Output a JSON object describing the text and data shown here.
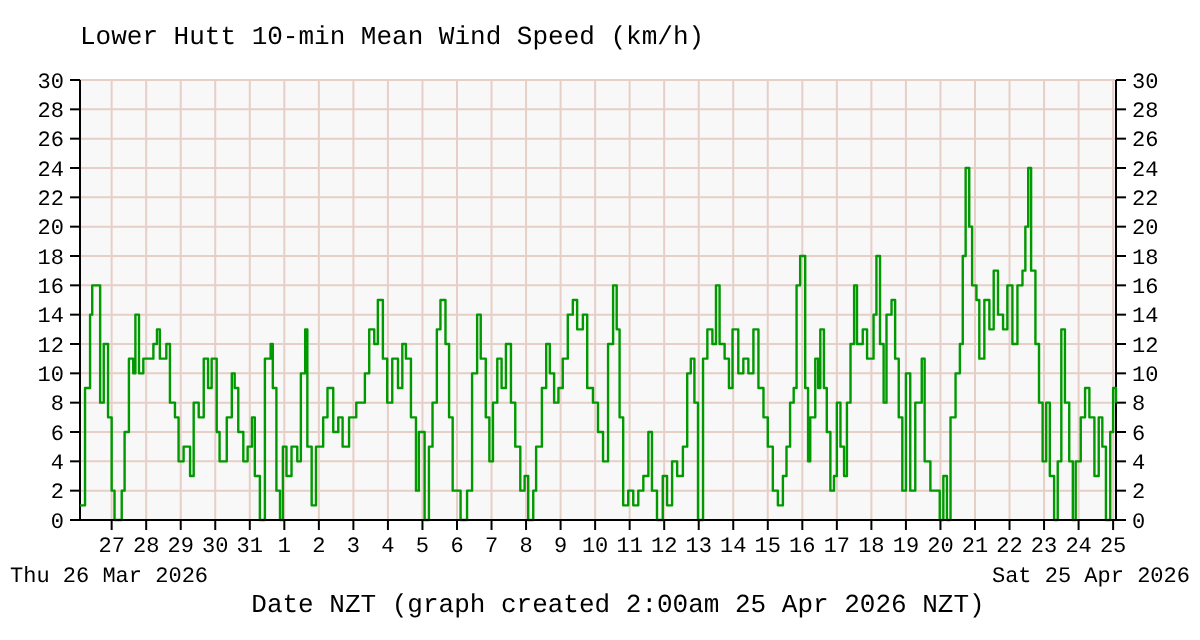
{
  "chart_data": {
    "type": "step",
    "title": "Lower Hutt 10-min Mean Wind Speed (km/h)",
    "xlabel": "Date NZT (graph created 2:00am 25 Apr 2026 NZT)",
    "annotations": [
      "Thu 26 Mar 2026",
      "Sat 25 Apr 2026"
    ],
    "xlim": [
      "2026-03-26T02:00",
      "2026-04-25T02:00"
    ],
    "xticks": [
      {
        "value": "2026-03-27",
        "label": "27"
      },
      {
        "value": "2026-03-28",
        "label": "28"
      },
      {
        "value": "2026-03-29",
        "label": "29"
      },
      {
        "value": "2026-03-30",
        "label": "30"
      },
      {
        "value": "2026-03-31",
        "label": "31"
      },
      {
        "value": "2026-04-01",
        "label": "1"
      },
      {
        "value": "2026-04-02",
        "label": "2"
      },
      {
        "value": "2026-04-03",
        "label": "3"
      },
      {
        "value": "2026-04-04",
        "label": "4"
      },
      {
        "value": "2026-04-05",
        "label": "5"
      },
      {
        "value": "2026-04-06",
        "label": "6"
      },
      {
        "value": "2026-04-07",
        "label": "7"
      },
      {
        "value": "2026-04-08",
        "label": "8"
      },
      {
        "value": "2026-04-09",
        "label": "9"
      },
      {
        "value": "2026-04-10",
        "label": "10"
      },
      {
        "value": "2026-04-11",
        "label": "11"
      },
      {
        "value": "2026-04-12",
        "label": "12"
      },
      {
        "value": "2026-04-13",
        "label": "13"
      },
      {
        "value": "2026-04-14",
        "label": "14"
      },
      {
        "value": "2026-04-15",
        "label": "15"
      },
      {
        "value": "2026-04-16",
        "label": "16"
      },
      {
        "value": "2026-04-17",
        "label": "17"
      },
      {
        "value": "2026-04-18",
        "label": "18"
      },
      {
        "value": "2026-04-19",
        "label": "19"
      },
      {
        "value": "2026-04-20",
        "label": "20"
      },
      {
        "value": "2026-04-21",
        "label": "21"
      },
      {
        "value": "2026-04-22",
        "label": "22"
      },
      {
        "value": "2026-04-23",
        "label": "23"
      },
      {
        "value": "2026-04-24",
        "label": "24"
      },
      {
        "value": "2026-04-25",
        "label": "25"
      }
    ],
    "ylim": [
      0,
      30
    ],
    "yticks": [
      0,
      2,
      4,
      6,
      8,
      10,
      12,
      14,
      16,
      18,
      20,
      22,
      24,
      26,
      28,
      30
    ],
    "y2lim": [
      0,
      30
    ],
    "y2ticks": [
      0,
      2,
      4,
      6,
      8,
      10,
      12,
      14,
      16,
      18,
      20,
      22,
      24,
      26,
      28,
      30
    ],
    "grid": true,
    "marker": "none",
    "line_style": "solid",
    "x": [
      "2026-03-26T02:00",
      "2026-03-26T05:30",
      "2026-03-26T09:00",
      "2026-03-26T10:30",
      "2026-03-26T16:00",
      "2026-03-26T18:30",
      "2026-03-26T21:30",
      "2026-03-27T00:00",
      "2026-03-27T02:00",
      "2026-03-27T07:00",
      "2026-03-27T09:00",
      "2026-03-27T12:00",
      "2026-03-27T15:00",
      "2026-03-27T16:30",
      "2026-03-27T19:00",
      "2026-03-27T22:00",
      "2026-03-28T00:30",
      "2026-03-28T05:00",
      "2026-03-28T07:30",
      "2026-03-28T09:30",
      "2026-03-28T14:00",
      "2026-03-28T16:30",
      "2026-03-28T20:00",
      "2026-03-28T22:30",
      "2026-03-29T02:00",
      "2026-03-29T06:30",
      "2026-03-29T09:00",
      "2026-03-29T12:30",
      "2026-03-29T16:00",
      "2026-03-29T19:00",
      "2026-03-29T21:30",
      "2026-03-30T01:00",
      "2026-03-30T03:00",
      "2026-03-30T08:00",
      "2026-03-30T11:30",
      "2026-03-30T13:30",
      "2026-03-30T16:00",
      "2026-03-30T19:30",
      "2026-03-30T22:30",
      "2026-03-31T01:30",
      "2026-03-31T03:30",
      "2026-03-31T07:00",
      "2026-03-31T10:30",
      "2026-03-31T14:30",
      "2026-03-31T16:00",
      "2026-03-31T18:30",
      "2026-03-31T21:00",
      "2026-03-31T23:00",
      "2026-04-01T01:30",
      "2026-04-01T05:00",
      "2026-04-01T09:00",
      "2026-04-01T11:30",
      "2026-04-01T14:30",
      "2026-04-01T16:00",
      "2026-04-01T19:00",
      "2026-04-01T22:00",
      "2026-04-02T03:00",
      "2026-04-02T06:00",
      "2026-04-02T10:00",
      "2026-04-02T13:30",
      "2026-04-02T16:30",
      "2026-04-02T21:00",
      "2026-04-03T02:00",
      "2026-04-03T08:00",
      "2026-04-03T11:00",
      "2026-04-03T14:30",
      "2026-04-03T17:00",
      "2026-04-03T20:30",
      "2026-04-03T23:30",
      "2026-04-04T03:00",
      "2026-04-04T07:00",
      "2026-04-04T10:00",
      "2026-04-04T12:30",
      "2026-04-04T16:00",
      "2026-04-04T19:30",
      "2026-04-04T21:30",
      "2026-04-05T01:30",
      "2026-04-05T04:30",
      "2026-04-05T07:00",
      "2026-04-05T10:00",
      "2026-04-05T12:30",
      "2026-04-05T16:00",
      "2026-04-05T18:30",
      "2026-04-05T21:00",
      "2026-04-06T02:30",
      "2026-04-06T07:00",
      "2026-04-06T10:30",
      "2026-04-06T14:00",
      "2026-04-06T16:30",
      "2026-04-06T20:00",
      "2026-04-06T22:30",
      "2026-04-07T01:00",
      "2026-04-07T04:00",
      "2026-04-07T07:00",
      "2026-04-07T10:00",
      "2026-04-07T13:30",
      "2026-04-07T16:30",
      "2026-04-07T20:00",
      "2026-04-07T23:00",
      "2026-04-08T01:30",
      "2026-04-08T05:00",
      "2026-04-08T07:00",
      "2026-04-08T11:00",
      "2026-04-08T14:00",
      "2026-04-08T16:30",
      "2026-04-08T19:30",
      "2026-04-08T22:30",
      "2026-04-09T01:30",
      "2026-04-09T05:00",
      "2026-04-09T08:30",
      "2026-04-09T11:30",
      "2026-04-09T15:30",
      "2026-04-09T18:30",
      "2026-04-09T22:30",
      "2026-04-10T02:00",
      "2026-04-10T05:30",
      "2026-04-10T09:00",
      "2026-04-10T12:30",
      "2026-04-10T15:00",
      "2026-04-10T17:00",
      "2026-04-10T19:30",
      "2026-04-10T23:00",
      "2026-04-11T02:30",
      "2026-04-11T06:00",
      "2026-04-11T09:30",
      "2026-04-11T13:00",
      "2026-04-11T15:30",
      "2026-04-11T19:00",
      "2026-04-11T23:00",
      "2026-04-12T02:00",
      "2026-04-12T05:30",
      "2026-04-12T09:00",
      "2026-04-12T13:00",
      "2026-04-12T16:00",
      "2026-04-12T18:30",
      "2026-04-12T21:00",
      "2026-04-12T23:30",
      "2026-04-13T03:00",
      "2026-04-13T06:00",
      "2026-04-13T09:30",
      "2026-04-13T12:00",
      "2026-04-13T14:30",
      "2026-04-13T18:00",
      "2026-04-13T21:00",
      "2026-04-13T23:30",
      "2026-04-14T03:30",
      "2026-04-14T07:00",
      "2026-04-14T10:30",
      "2026-04-14T14:00",
      "2026-04-14T17:30",
      "2026-04-14T21:00",
      "2026-04-15T00:00",
      "2026-04-15T03:30",
      "2026-04-15T07:00",
      "2026-04-15T10:30",
      "2026-04-15T13:00",
      "2026-04-15T15:30",
      "2026-04-15T18:00",
      "2026-04-15T20:00",
      "2026-04-15T22:30",
      "2026-04-16T02:00",
      "2026-04-16T04:00",
      "2026-04-16T05:30",
      "2026-04-16T09:00",
      "2026-04-16T11:00",
      "2026-04-16T12:30",
      "2026-04-16T15:00",
      "2026-04-16T17:00",
      "2026-04-16T19:30",
      "2026-04-16T22:00",
      "2026-04-17T00:00",
      "2026-04-17T02:30",
      "2026-04-17T05:00",
      "2026-04-17T07:00",
      "2026-04-17T09:30",
      "2026-04-17T12:00",
      "2026-04-17T14:00",
      "2026-04-17T18:00",
      "2026-04-17T21:00",
      "2026-04-18T01:30",
      "2026-04-18T03:30",
      "2026-04-18T06:00",
      "2026-04-18T08:30",
      "2026-04-18T10:30",
      "2026-04-18T14:00",
      "2026-04-18T16:30",
      "2026-04-18T19:00",
      "2026-04-18T21:30",
      "2026-04-19T00:00",
      "2026-04-19T03:00",
      "2026-04-19T06:30",
      "2026-04-19T11:00",
      "2026-04-19T13:00",
      "2026-04-19T17:00",
      "2026-04-19T20:00",
      "2026-04-19T23:30",
      "2026-04-20T02:00",
      "2026-04-20T04:30",
      "2026-04-20T07:00",
      "2026-04-20T10:30",
      "2026-04-20T13:30",
      "2026-04-20T15:30",
      "2026-04-20T17:30",
      "2026-04-20T20:00",
      "2026-04-20T22:00",
      "2026-04-21T01:00",
      "2026-04-21T03:00",
      "2026-04-21T06:30",
      "2026-04-21T10:00",
      "2026-04-21T13:00",
      "2026-04-21T16:00",
      "2026-04-21T19:30",
      "2026-04-21T22:30",
      "2026-04-22T02:00",
      "2026-04-22T05:30",
      "2026-04-22T09:00",
      "2026-04-22T11:00",
      "2026-04-22T13:00",
      "2026-04-22T15:00",
      "2026-04-22T18:00",
      "2026-04-22T20:30",
      "2026-04-22T23:00",
      "2026-04-23T01:30",
      "2026-04-23T04:00",
      "2026-04-23T07:00",
      "2026-04-23T09:30",
      "2026-04-23T12:00",
      "2026-04-23T14:30",
      "2026-04-23T17:30",
      "2026-04-23T20:00",
      "2026-04-23T22:00",
      "2026-04-24T01:30",
      "2026-04-24T04:30",
      "2026-04-24T07:30",
      "2026-04-24T11:00",
      "2026-04-24T14:00",
      "2026-04-24T16:30",
      "2026-04-24T19:00",
      "2026-04-24T22:00",
      "2026-04-25T00:00",
      "2026-04-25T02:00"
    ],
    "series": [
      {
        "color": "#009900",
        "values": [
          1,
          9,
          14,
          16,
          8,
          12,
          7,
          2,
          0,
          2,
          6,
          11,
          10,
          14,
          10,
          11,
          11,
          12,
          13,
          11,
          12,
          8,
          7,
          4,
          5,
          3,
          8,
          7,
          11,
          9,
          11,
          6,
          4,
          7,
          10,
          9,
          6,
          4,
          5,
          7,
          3,
          0,
          11,
          12,
          9,
          2,
          0,
          5,
          3,
          5,
          4,
          10,
          13,
          5,
          1,
          5,
          7,
          9,
          6,
          7,
          5,
          7,
          8,
          10,
          13,
          12,
          15,
          11,
          8,
          11,
          9,
          12,
          11,
          7,
          2,
          6,
          0,
          5,
          8,
          13,
          15,
          12,
          7,
          2,
          0,
          2,
          10,
          14,
          11,
          7,
          4,
          8,
          11,
          9,
          12,
          8,
          5,
          2,
          3,
          0,
          2,
          5,
          9,
          12,
          10,
          8,
          9,
          11,
          14,
          15,
          13,
          14,
          9,
          8,
          6,
          4,
          12,
          16,
          13,
          7,
          1,
          2,
          1,
          2,
          3,
          6,
          2,
          0,
          3,
          1,
          4,
          3,
          5,
          10,
          11,
          8,
          0,
          11,
          13,
          12,
          16,
          12,
          11,
          9,
          13,
          10,
          11,
          10,
          13,
          9,
          7,
          5,
          2,
          1,
          3,
          5,
          8,
          9,
          16,
          18,
          9,
          4,
          7,
          11,
          9,
          13,
          9,
          6,
          2,
          3,
          8,
          5,
          3,
          8,
          12,
          16,
          12,
          13,
          11,
          14,
          18,
          12,
          8,
          14,
          15,
          11,
          7,
          2,
          10,
          2,
          8,
          11,
          4,
          2,
          2,
          0,
          3,
          0,
          7,
          10,
          12,
          18,
          24,
          20,
          16,
          15,
          11,
          15,
          13,
          17,
          14,
          13,
          16,
          12,
          16,
          17,
          20,
          24,
          17,
          12,
          8,
          4,
          8,
          3,
          0,
          4,
          13,
          8,
          4,
          0,
          4,
          7,
          9,
          7,
          3,
          7,
          5,
          0,
          6,
          9,
          8
        ]
      }
    ]
  }
}
